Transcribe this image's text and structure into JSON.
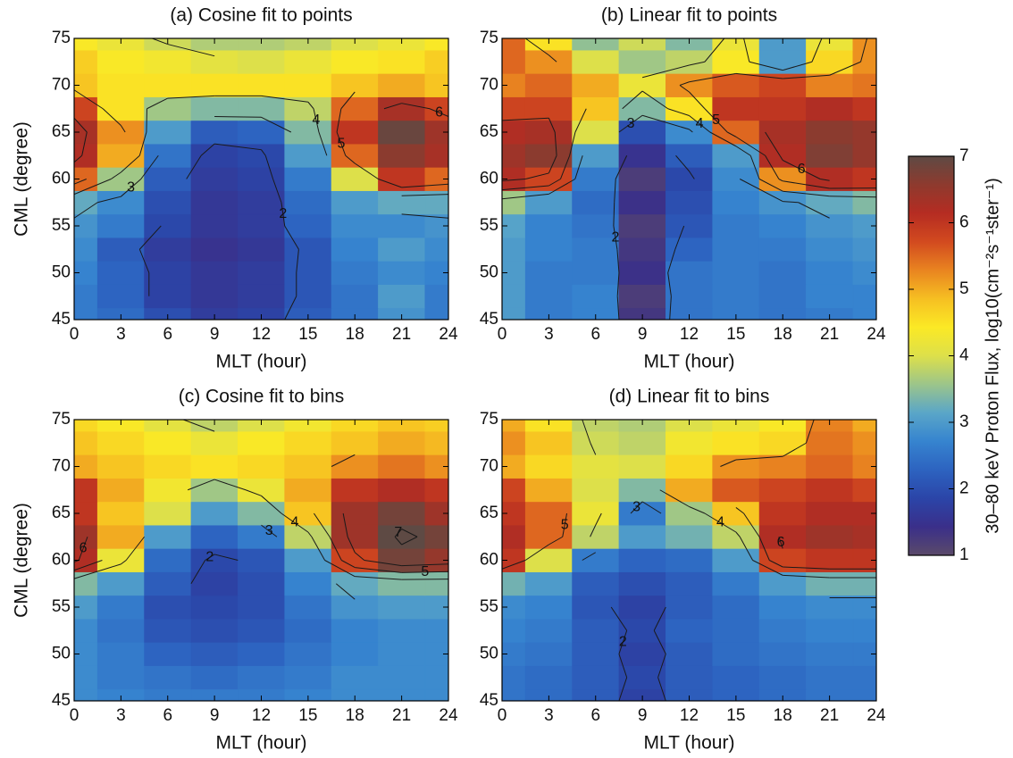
{
  "chart_data": [
    {
      "type": "contour",
      "title": "(a) Cosine fit to points",
      "xlabel": "MLT (hour)",
      "ylabel": "CML (degree)",
      "xlim": [
        0,
        24
      ],
      "xticks": [
        0,
        3,
        6,
        9,
        12,
        15,
        18,
        21,
        24
      ],
      "ylim": [
        45,
        75
      ],
      "yticks": [
        45,
        50,
        55,
        60,
        65,
        70,
        75
      ],
      "levels": [
        1,
        2,
        3,
        4,
        5,
        6,
        7
      ],
      "x": [
        0,
        3,
        6,
        9,
        12,
        15,
        18,
        21,
        24
      ],
      "y": [
        45,
        47.5,
        50,
        52.5,
        55,
        57.5,
        60,
        62.5,
        65,
        67.5,
        70,
        72.5,
        75
      ],
      "z": [
        [
          2.6,
          2.4,
          2.0,
          1.7,
          1.8,
          2.2,
          2.5,
          2.9,
          2.6
        ],
        [
          2.6,
          2.3,
          1.8,
          1.6,
          1.7,
          2.1,
          2.5,
          3.0,
          2.6
        ],
        [
          2.7,
          2.3,
          1.8,
          1.6,
          1.7,
          2.1,
          2.6,
          2.8,
          2.7
        ],
        [
          2.8,
          2.2,
          1.7,
          1.5,
          1.6,
          2.1,
          2.7,
          3.0,
          2.8
        ],
        [
          2.9,
          2.6,
          1.9,
          1.6,
          1.7,
          2.3,
          2.8,
          2.8,
          2.9
        ],
        [
          3.2,
          2.8,
          2.0,
          1.6,
          1.7,
          2.4,
          3.0,
          3.2,
          3.2
        ],
        [
          5.5,
          3.6,
          2.2,
          1.7,
          1.8,
          2.6,
          4.0,
          6.0,
          5.5
        ],
        [
          6.2,
          5.0,
          2.5,
          1.8,
          1.9,
          3.0,
          5.5,
          6.6,
          6.3
        ],
        [
          6.3,
          5.2,
          3.0,
          2.2,
          2.3,
          3.4,
          6.0,
          6.9,
          6.4
        ],
        [
          5.8,
          4.5,
          3.6,
          3.4,
          3.4,
          3.8,
          5.5,
          6.3,
          5.8
        ],
        [
          4.8,
          4.5,
          4.5,
          4.5,
          4.5,
          4.5,
          4.8,
          5.0,
          4.8
        ],
        [
          4.7,
          4.4,
          4.3,
          4.1,
          4.0,
          4.2,
          4.4,
          4.5,
          4.7
        ],
        [
          4.4,
          4.2,
          3.9,
          3.7,
          3.7,
          3.8,
          4.0,
          4.2,
          4.4
        ]
      ]
    },
    {
      "type": "contour",
      "title": "(b) Linear fit to points",
      "xlabel": "MLT (hour)",
      "xlim": [
        0,
        24
      ],
      "xticks": [
        0,
        3,
        6,
        9,
        12,
        15,
        18,
        21,
        24
      ],
      "ylim": [
        45,
        75
      ],
      "yticks": [
        45,
        50,
        55,
        60,
        65,
        70,
        75
      ],
      "levels": [
        1,
        2,
        3,
        4,
        5,
        6,
        7
      ],
      "x": [
        0,
        3,
        6,
        9,
        12,
        15,
        18,
        21,
        24
      ],
      "y": [
        45,
        47.5,
        50,
        52.5,
        55,
        57.5,
        60,
        62.5,
        65,
        67.5,
        70,
        72.5,
        75
      ],
      "z": [
        [
          3.0,
          2.6,
          2.7,
          1.3,
          2.5,
          2.6,
          2.5,
          2.6,
          2.7
        ],
        [
          3.0,
          2.6,
          2.7,
          1.2,
          2.5,
          2.6,
          2.5,
          2.7,
          2.7
        ],
        [
          3.0,
          2.6,
          2.6,
          1.4,
          2.5,
          2.6,
          2.5,
          2.7,
          2.8
        ],
        [
          3.0,
          2.7,
          2.6,
          1.3,
          2.3,
          2.6,
          2.6,
          2.8,
          2.9
        ],
        [
          3.1,
          2.7,
          2.5,
          1.2,
          2.1,
          2.6,
          2.7,
          2.9,
          3.0
        ],
        [
          3.6,
          3.0,
          2.4,
          1.4,
          2.0,
          2.7,
          2.9,
          3.2,
          3.4
        ],
        [
          6.2,
          5.8,
          2.6,
          1.2,
          1.9,
          2.8,
          5.2,
          6.2,
          6.0
        ],
        [
          6.4,
          6.6,
          3.0,
          1.5,
          2.2,
          3.0,
          6.2,
          6.7,
          6.5
        ],
        [
          6.2,
          6.3,
          4.0,
          2.0,
          2.8,
          5.5,
          6.3,
          6.6,
          6.5
        ],
        [
          5.8,
          5.8,
          4.8,
          3.4,
          4.5,
          6.0,
          6.0,
          6.2,
          6.0
        ],
        [
          5.3,
          5.5,
          5.0,
          4.2,
          5.2,
          5.6,
          5.8,
          5.3,
          5.4
        ],
        [
          5.5,
          5.2,
          4.0,
          3.6,
          3.8,
          4.4,
          3.0,
          4.6,
          5.2
        ],
        [
          5.5,
          4.5,
          3.5,
          3.9,
          3.4,
          4.2,
          3.0,
          4.2,
          5.2
        ]
      ]
    },
    {
      "type": "contour",
      "title": "(c) Cosine fit to bins",
      "xlabel": "MLT (hour)",
      "ylabel": "CML (degree)",
      "xlim": [
        0,
        24
      ],
      "xticks": [
        0,
        3,
        6,
        9,
        12,
        15,
        18,
        21,
        24
      ],
      "ylim": [
        45,
        75
      ],
      "yticks": [
        45,
        50,
        55,
        60,
        65,
        70,
        75
      ],
      "levels": [
        1,
        2,
        3,
        4,
        5,
        6,
        7
      ],
      "x": [
        0,
        3,
        6,
        9,
        12,
        15,
        18,
        21,
        24
      ],
      "y": [
        45,
        47.5,
        50,
        52.5,
        55,
        57.5,
        60,
        62.5,
        65,
        67.5,
        70,
        72.5,
        75
      ],
      "z": [
        [
          2.8,
          2.7,
          2.6,
          2.6,
          2.6,
          2.7,
          2.8,
          2.8,
          2.8
        ],
        [
          2.8,
          2.6,
          2.5,
          2.4,
          2.5,
          2.6,
          2.8,
          2.8,
          2.8
        ],
        [
          2.8,
          2.6,
          2.3,
          2.2,
          2.3,
          2.5,
          2.7,
          2.8,
          2.8
        ],
        [
          2.8,
          2.5,
          2.1,
          2.0,
          2.1,
          2.4,
          2.7,
          2.8,
          2.8
        ],
        [
          3.0,
          2.6,
          2.0,
          1.9,
          2.0,
          2.5,
          2.9,
          3.0,
          3.0
        ],
        [
          3.4,
          3.0,
          2.2,
          1.8,
          2.0,
          2.7,
          3.2,
          3.4,
          3.4
        ],
        [
          6.2,
          4.2,
          2.4,
          1.9,
          2.1,
          3.0,
          5.8,
          6.8,
          6.5
        ],
        [
          6.4,
          5.0,
          3.0,
          2.3,
          2.6,
          3.8,
          6.4,
          7.1,
          6.8
        ],
        [
          6.0,
          4.8,
          4.0,
          3.0,
          3.4,
          4.8,
          6.4,
          6.8,
          6.4
        ],
        [
          6.0,
          5.0,
          4.3,
          3.6,
          4.2,
          5.0,
          6.0,
          6.2,
          6.0
        ],
        [
          5.0,
          4.8,
          4.6,
          4.5,
          4.6,
          4.8,
          5.2,
          5.4,
          5.2
        ],
        [
          4.8,
          4.6,
          4.4,
          4.2,
          4.4,
          4.6,
          4.8,
          5.0,
          4.9
        ],
        [
          4.6,
          4.4,
          4.1,
          3.8,
          4.0,
          4.3,
          4.6,
          4.8,
          4.7
        ]
      ]
    },
    {
      "type": "contour",
      "title": "(d) Linear fit to bins",
      "xlabel": "MLT (hour)",
      "xlim": [
        0,
        24
      ],
      "xticks": [
        0,
        3,
        6,
        9,
        12,
        15,
        18,
        21,
        24
      ],
      "ylim": [
        45,
        75
      ],
      "yticks": [
        45,
        50,
        55,
        60,
        65,
        70,
        75
      ],
      "levels": [
        1,
        2,
        3,
        4,
        5,
        6,
        7
      ],
      "x": [
        0,
        3,
        6,
        9,
        12,
        15,
        18,
        21,
        24
      ],
      "y": [
        45,
        47.5,
        50,
        52.5,
        55,
        57.5,
        60,
        62.5,
        65,
        67.5,
        70,
        72.5,
        75
      ],
      "z": [
        [
          2.5,
          2.4,
          2.2,
          1.8,
          2.2,
          2.3,
          2.4,
          2.5,
          2.5
        ],
        [
          2.5,
          2.4,
          2.2,
          1.9,
          2.2,
          2.3,
          2.4,
          2.5,
          2.5
        ],
        [
          2.6,
          2.5,
          2.2,
          1.8,
          2.2,
          2.4,
          2.5,
          2.6,
          2.6
        ],
        [
          2.7,
          2.6,
          2.2,
          1.9,
          2.3,
          2.4,
          2.6,
          2.7,
          2.7
        ],
        [
          2.8,
          2.7,
          2.1,
          1.8,
          2.2,
          2.4,
          2.7,
          2.8,
          2.8
        ],
        [
          3.3,
          3.0,
          2.2,
          2.0,
          2.2,
          2.6,
          3.0,
          3.3,
          3.3
        ],
        [
          6.0,
          4.0,
          2.6,
          2.3,
          2.4,
          3.0,
          5.8,
          6.0,
          6.0
        ],
        [
          6.2,
          5.5,
          3.8,
          3.0,
          3.3,
          3.8,
          6.2,
          6.4,
          6.3
        ],
        [
          6.0,
          5.5,
          4.2,
          2.6,
          3.6,
          4.8,
          6.0,
          6.2,
          6.2
        ],
        [
          5.8,
          5.0,
          4.0,
          3.4,
          5.0,
          5.6,
          5.8,
          6.0,
          5.8
        ],
        [
          5.0,
          4.6,
          4.1,
          4.0,
          4.6,
          5.2,
          5.3,
          5.5,
          5.3
        ],
        [
          5.2,
          4.8,
          3.9,
          3.8,
          4.3,
          4.5,
          4.6,
          5.4,
          5.2
        ],
        [
          5.0,
          4.5,
          3.8,
          3.7,
          4.0,
          4.2,
          4.4,
          5.3,
          5.0
        ]
      ]
    }
  ],
  "colorbar": {
    "label": "30–80 keV Proton Flux, log10(cm⁻²s⁻¹ster⁻¹)",
    "lim": [
      1,
      7
    ],
    "ticks": [
      1,
      2,
      3,
      4,
      5,
      6,
      7
    ],
    "colormap": [
      "#5b4a6a",
      "#3a2f8a",
      "#2b45a8",
      "#2d63c0",
      "#3684cf",
      "#5aa6c8",
      "#9cc58a",
      "#dde04a",
      "#fbe925",
      "#f6bf22",
      "#e98420",
      "#d24a1f",
      "#b52c22",
      "#8e3a2e",
      "#5e4a44"
    ]
  }
}
